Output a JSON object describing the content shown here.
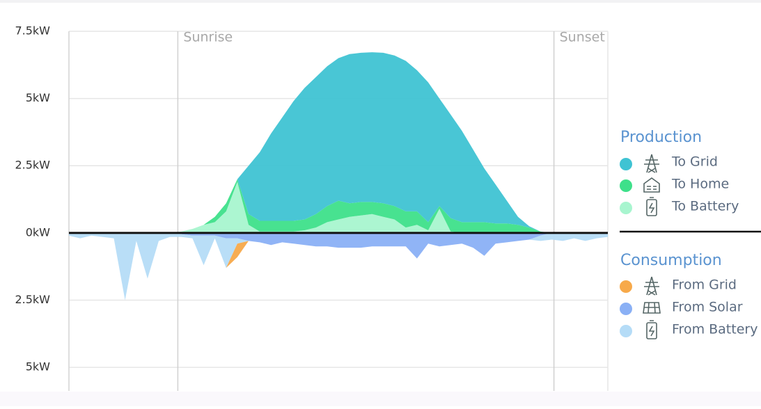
{
  "chart_data": {
    "type": "stacked_area",
    "x": [
      0,
      0.5,
      1,
      1.5,
      2,
      2.5,
      3,
      3.5,
      4,
      4.5,
      5,
      5.5,
      6,
      6.5,
      7,
      7.5,
      8,
      8.5,
      9,
      9.5,
      10,
      10.5,
      11,
      11.5,
      12,
      12.5,
      13,
      13.5,
      14,
      14.5,
      15,
      15.5,
      16,
      16.5,
      17,
      17.5,
      18,
      18.5,
      19,
      19.5,
      20,
      20.5,
      21,
      21.5,
      22,
      22.5,
      23,
      23.5,
      24
    ],
    "xlim": [
      0,
      24
    ],
    "ylim": [
      -5.8,
      7.5
    ],
    "yticks": [
      {
        "value": 7.5,
        "label": "7.5kW"
      },
      {
        "value": 5,
        "label": "5kW"
      },
      {
        "value": 2.5,
        "label": "2.5kW"
      },
      {
        "value": 0,
        "label": "0kW"
      },
      {
        "value": -2.5,
        "label": "2.5kW"
      },
      {
        "value": -5,
        "label": "5kW"
      }
    ],
    "grid": true,
    "annotations": [
      {
        "text": "Sunrise",
        "x": 4.85
      },
      {
        "text": "Sunset",
        "x": 21.6
      }
    ],
    "legend_titles": [
      "Production",
      "Consumption"
    ],
    "series": [
      {
        "name": "To Grid",
        "color": "#3fc3d3",
        "values": [
          0,
          0,
          0,
          0,
          0,
          0,
          0,
          0,
          0,
          0,
          0,
          0,
          0,
          0,
          0,
          0,
          1.8,
          2.55,
          3.25,
          3.85,
          4.45,
          4.9,
          5.1,
          5.2,
          5.3,
          5.55,
          5.55,
          5.57,
          5.6,
          5.6,
          5.6,
          5.25,
          5.2,
          4.0,
          3.85,
          3.4,
          2.7,
          2.0,
          1.45,
          0.85,
          0.3,
          0.05,
          0,
          0,
          0,
          0,
          0,
          0,
          0
        ]
      },
      {
        "name": "To Home",
        "color": "#3ee08a",
        "values": [
          0,
          0,
          0,
          0,
          0,
          0,
          0,
          0,
          0,
          0,
          0,
          0,
          0,
          0.2,
          0.3,
          0.1,
          0.4,
          0.4,
          0.4,
          0.4,
          0.4,
          0.4,
          0.5,
          0.6,
          0.7,
          0.5,
          0.5,
          0.45,
          0.5,
          0.5,
          0.6,
          0.5,
          0.3,
          0.1,
          0.5,
          0.4,
          0.4,
          0.4,
          0.35,
          0.35,
          0.3,
          0.2,
          0.05,
          0,
          0,
          0,
          0,
          0,
          0
        ]
      },
      {
        "name": "To Battery",
        "color": "#a8f5cf",
        "values": [
          0,
          0,
          0,
          0,
          0,
          0,
          0,
          0,
          0,
          0,
          0.05,
          0.15,
          0.3,
          0.4,
          0.8,
          1.9,
          0.3,
          0.05,
          0.05,
          0.05,
          0.05,
          0.1,
          0.2,
          0.4,
          0.5,
          0.6,
          0.65,
          0.7,
          0.6,
          0.5,
          0.2,
          0.3,
          0.1,
          0.9,
          0.05,
          0,
          0,
          0,
          0,
          0,
          0,
          0,
          0,
          0,
          0,
          0,
          0,
          0,
          0
        ]
      },
      {
        "name": "From Grid",
        "color": "#f7a94a",
        "values": [
          0,
          0,
          0,
          0,
          0,
          0,
          0,
          0,
          0,
          0,
          0,
          0,
          0,
          0,
          0,
          -0.5,
          0,
          0,
          0,
          0,
          0,
          0,
          0,
          0,
          0,
          0,
          0,
          0,
          0,
          0,
          0,
          0,
          0,
          0,
          0,
          0,
          0,
          0,
          0,
          0,
          0,
          0,
          0,
          0,
          0,
          0,
          0,
          0,
          0
        ]
      },
      {
        "name": "From Solar",
        "color": "#8ab0f5",
        "values": [
          0,
          0,
          0,
          0,
          0,
          0,
          0,
          0,
          0,
          0,
          -0.05,
          -0.1,
          -0.1,
          -0.1,
          -0.2,
          -0.2,
          -0.3,
          -0.35,
          -0.45,
          -0.35,
          -0.4,
          -0.45,
          -0.5,
          -0.5,
          -0.55,
          -0.55,
          -0.55,
          -0.5,
          -0.5,
          -0.5,
          -0.5,
          -0.95,
          -0.4,
          -0.5,
          -0.45,
          -0.4,
          -0.55,
          -0.85,
          -0.4,
          -0.35,
          -0.3,
          -0.25,
          -0.1,
          0,
          0,
          0,
          0,
          0,
          0
        ]
      },
      {
        "name": "From Battery",
        "color": "#b5dcf7",
        "values": [
          -0.1,
          -0.2,
          -0.1,
          -0.15,
          -0.2,
          -2.5,
          -0.3,
          -1.7,
          -0.3,
          -0.15,
          -0.1,
          -0.1,
          -1.1,
          -0.1,
          -1.1,
          -0.2,
          0,
          0,
          0,
          0,
          0,
          0,
          0,
          0,
          0,
          0,
          0,
          0,
          0,
          0,
          0,
          0,
          0,
          0,
          0,
          0,
          0,
          0,
          0,
          0,
          0,
          0,
          -0.2,
          -0.25,
          -0.3,
          -0.2,
          -0.3,
          -0.2,
          -0.15
        ]
      }
    ]
  }
}
